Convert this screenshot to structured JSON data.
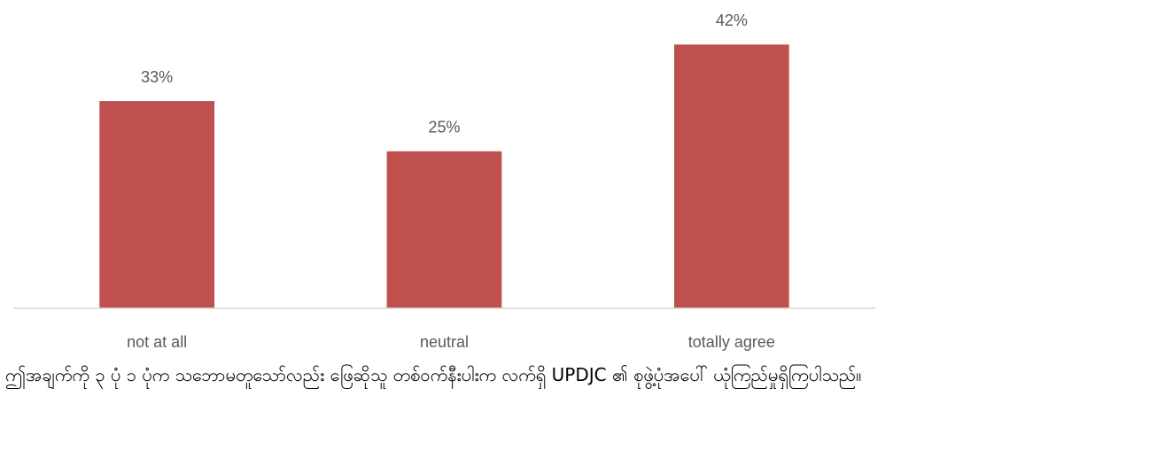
{
  "chart_data": {
    "type": "bar",
    "categories": [
      "not at all",
      "neutral",
      "totally agree"
    ],
    "values": [
      33,
      25,
      42
    ],
    "value_labels": [
      "33%",
      "25%",
      "42%"
    ],
    "color": "#c0504d",
    "ylim": [
      0,
      45
    ]
  },
  "caption": "ဤအချက်ကို ၃ ပုံ ၁ ပုံက သဘောမတူသော်လည်း ဖြေဆိုသူ တစ်ဝက်နီးပါးက လက်ရှိ UPDJC ၏ စုဖွဲ့ပုံအပေါ် ယုံကြည်မှုရှိကြပါသည်။"
}
